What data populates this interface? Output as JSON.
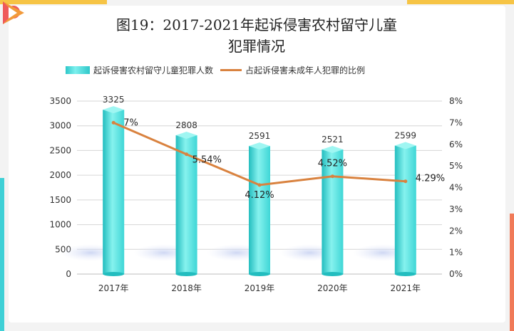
{
  "title_line1": "图19：2017-2021年起诉侵害农村留守儿童",
  "title_line2": "犯罪情况",
  "chart_data": {
    "type": "bar",
    "categories": [
      "2017年",
      "2018年",
      "2019年",
      "2020年",
      "2021年"
    ],
    "series": [
      {
        "name": "起诉侵害农村留守儿童犯罪人数",
        "type": "bar",
        "axis": "left",
        "values": [
          3325,
          2808,
          2591,
          2521,
          2599
        ],
        "labels": [
          "3325",
          "2808",
          "2591",
          "2521",
          "2599"
        ]
      },
      {
        "name": "占起诉侵害未成年人犯罪的比例",
        "type": "line",
        "axis": "right",
        "values": [
          7.0,
          5.54,
          4.12,
          4.52,
          4.29
        ],
        "labels": [
          "7%",
          "5.54%",
          "4.12%",
          "4.52%",
          "4.29%"
        ]
      }
    ],
    "y_left": {
      "min": 0,
      "max": 3500,
      "ticks": [
        "0",
        "500",
        "1000",
        "1500",
        "2000",
        "2500",
        "3000",
        "3500"
      ]
    },
    "y_right": {
      "min": 0,
      "max": 8,
      "ticks": [
        "0%",
        "1%",
        "2%",
        "3%",
        "4%",
        "5%",
        "6%",
        "7%",
        "8%"
      ]
    },
    "legend_position": "top-left",
    "grid": true,
    "colors": {
      "bar": "#3fd6d6",
      "bar_light": "#86f2ee",
      "bar_dark": "#23bdbf",
      "line": "#d9823f"
    }
  }
}
